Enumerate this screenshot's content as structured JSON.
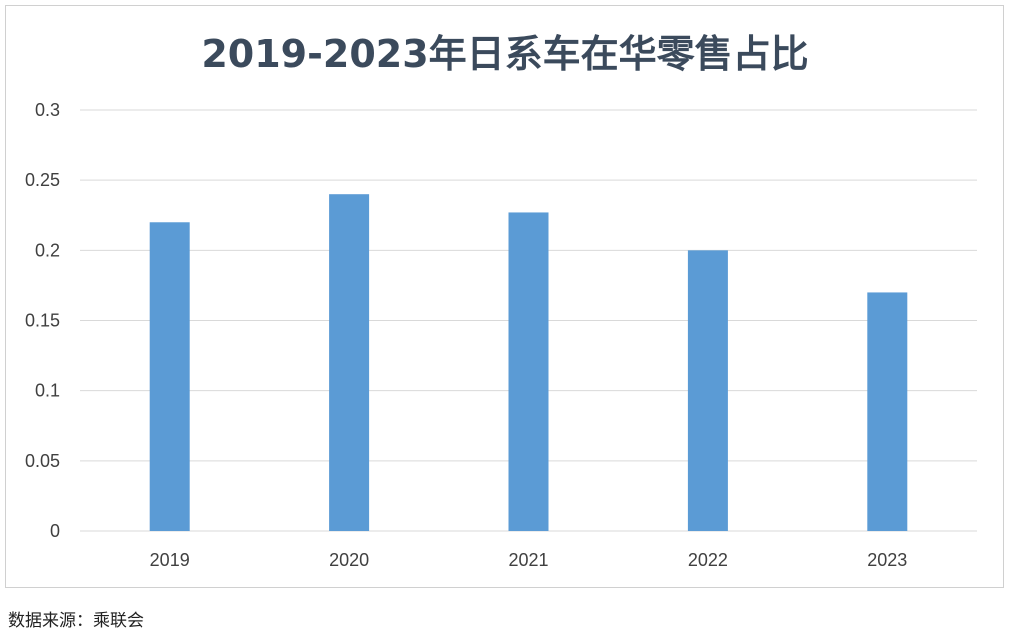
{
  "colors": {
    "bar": "#5b9bd5",
    "gridline": "#d9d9d9",
    "title": "#3b4a5c",
    "tick_label": "#404040",
    "frame": "#d0d0d0"
  },
  "chart_data": {
    "type": "bar",
    "title": "2019-2023年日系车在华零售占比",
    "xlabel": "",
    "ylabel": "",
    "categories": [
      "2019",
      "2020",
      "2021",
      "2022",
      "2023"
    ],
    "values": [
      0.22,
      0.24,
      0.227,
      0.2,
      0.17
    ],
    "ylim": [
      0,
      0.3
    ],
    "yticks": [
      "0",
      "0.05",
      "0.1",
      "0.15",
      "0.2",
      "0.25",
      "0.3"
    ],
    "grid": true,
    "legend": "none"
  },
  "source": "数据来源：乘联会"
}
